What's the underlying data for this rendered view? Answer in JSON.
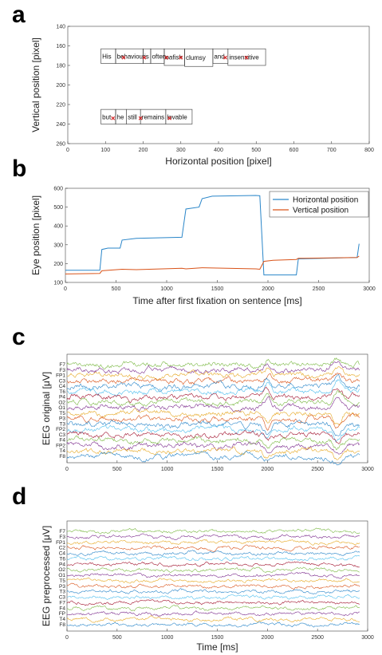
{
  "panels": {
    "a": "a",
    "b": "b",
    "c": "c",
    "d": "d"
  },
  "chart_data": [
    {
      "id": "a",
      "type": "scatter",
      "xlabel": "Horizontal position [pixel]",
      "ylabel": "Vertical position [pixel]",
      "xlim": [
        0,
        800
      ],
      "ylim": [
        140,
        260
      ],
      "y_reversed": true,
      "xticks": [
        0,
        100,
        200,
        300,
        400,
        500,
        600,
        700,
        800
      ],
      "yticks": [
        140,
        160,
        180,
        200,
        220,
        240,
        260
      ],
      "words": [
        {
          "text": "His",
          "x0": 88,
          "x1": 127,
          "y0": 163,
          "y1": 178
        },
        {
          "text": "behaviour",
          "x0": 127,
          "x1": 200,
          "y0": 163,
          "y1": 178
        },
        {
          "text": "is",
          "x0": 200,
          "x1": 220,
          "y0": 163,
          "y1": 178
        },
        {
          "text": "often",
          "x0": 220,
          "x1": 256,
          "y0": 163,
          "y1": 178
        },
        {
          "text": "oafish",
          "x0": 256,
          "x1": 310,
          "y0": 163,
          "y1": 180
        },
        {
          "text": "clumsy",
          "x0": 310,
          "x1": 385,
          "y0": 163,
          "y1": 181
        },
        {
          "text": "and",
          "x0": 385,
          "x1": 425,
          "y0": 163,
          "y1": 178
        },
        {
          "text": "insensitive",
          "x0": 425,
          "x1": 525,
          "y0": 163,
          "y1": 180
        },
        {
          "text": "but",
          "x0": 88,
          "x1": 127,
          "y0": 225,
          "y1": 240
        },
        {
          "text": "he",
          "x0": 127,
          "x1": 156,
          "y0": 225,
          "y1": 240
        },
        {
          "text": "still",
          "x0": 156,
          "x1": 193,
          "y0": 225,
          "y1": 240
        },
        {
          "text": "remains",
          "x0": 193,
          "x1": 260,
          "y0": 225,
          "y1": 240
        },
        {
          "text": "lovable",
          "x0": 260,
          "x1": 330,
          "y0": 225,
          "y1": 240
        }
      ],
      "fixations": [
        {
          "x": 148,
          "y": 172
        },
        {
          "x": 203,
          "y": 172
        },
        {
          "x": 262,
          "y": 172
        },
        {
          "x": 300,
          "y": 172
        },
        {
          "x": 418,
          "y": 172
        },
        {
          "x": 474,
          "y": 172
        },
        {
          "x": 120,
          "y": 234
        },
        {
          "x": 193,
          "y": 234
        },
        {
          "x": 270,
          "y": 234
        }
      ]
    },
    {
      "id": "b",
      "type": "line",
      "xlabel": "Time after first fixation on sentence [ms]",
      "ylabel": "Eye position [pixel]",
      "xlim": [
        0,
        3000
      ],
      "ylim": [
        100,
        600
      ],
      "xticks": [
        0,
        500,
        1000,
        1500,
        2000,
        2500,
        3000
      ],
      "yticks": [
        100,
        200,
        300,
        400,
        500,
        600
      ],
      "legend_position": "top-right",
      "series": [
        {
          "name": "Horizontal position",
          "color": "#2a86c9",
          "points": [
            [
              0,
              165
            ],
            [
              340,
              165
            ],
            [
              360,
              275
            ],
            [
              420,
              282
            ],
            [
              540,
              282
            ],
            [
              560,
              325
            ],
            [
              700,
              334
            ],
            [
              1150,
              340
            ],
            [
              1190,
              490
            ],
            [
              1320,
              500
            ],
            [
              1350,
              545
            ],
            [
              1450,
              558
            ],
            [
              1880,
              562
            ],
            [
              1920,
              560
            ],
            [
              1960,
              140
            ],
            [
              2050,
              140
            ],
            [
              2280,
              140
            ],
            [
              2300,
              225
            ],
            [
              2700,
              230
            ],
            [
              2880,
              232
            ],
            [
              2900,
              305
            ]
          ]
        },
        {
          "name": "Vertical position",
          "color": "#d95319",
          "points": [
            [
              0,
              145
            ],
            [
              340,
              148
            ],
            [
              360,
              162
            ],
            [
              560,
              170
            ],
            [
              700,
              168
            ],
            [
              1150,
              175
            ],
            [
              1190,
              172
            ],
            [
              1350,
              178
            ],
            [
              1880,
              172
            ],
            [
              1920,
              170
            ],
            [
              1960,
              212
            ],
            [
              2050,
              218
            ],
            [
              2280,
              222
            ],
            [
              2300,
              228
            ],
            [
              2880,
              232
            ],
            [
              2900,
              240
            ]
          ]
        }
      ]
    },
    {
      "id": "c",
      "type": "line",
      "ylabel": "EEG original [μV]",
      "xlim": [
        0,
        3000
      ],
      "xticks": [
        0,
        500,
        1000,
        1500,
        2000,
        2500,
        3000
      ],
      "channels": [
        "F7",
        "F3",
        "FP1",
        "C3",
        "C4",
        "T6",
        "P4",
        "O2",
        "O1",
        "T5",
        "P3",
        "T3",
        "FP2",
        "C3",
        "F4",
        "FP2",
        "T4",
        "F8"
      ]
    },
    {
      "id": "d",
      "type": "line",
      "xlabel": "Time [ms]",
      "ylabel": "EEG preprocessed [μV]",
      "xlim": [
        0,
        3000
      ],
      "xticks": [
        0,
        500,
        1000,
        1500,
        2000,
        2500,
        3000
      ],
      "channels": [
        "F7",
        "F3",
        "FP1",
        "C2",
        "C4",
        "T6",
        "P4",
        "O2",
        "O1",
        "T5",
        "P3",
        "T3",
        "C3",
        "F7",
        "F4",
        "FP",
        "T4",
        "F8"
      ]
    }
  ],
  "colors": {
    "traces": [
      "#7ab843",
      "#7d2e8e",
      "#e6a823",
      "#d95319",
      "#2a86c9",
      "#4dbeee",
      "#a2142f",
      "#7ab843",
      "#7d2e8e",
      "#e6a823",
      "#d95319",
      "#2a86c9",
      "#4dbeee",
      "#a2142f",
      "#7ab843",
      "#7d2e8e",
      "#e6a823",
      "#2a86c9"
    ]
  }
}
